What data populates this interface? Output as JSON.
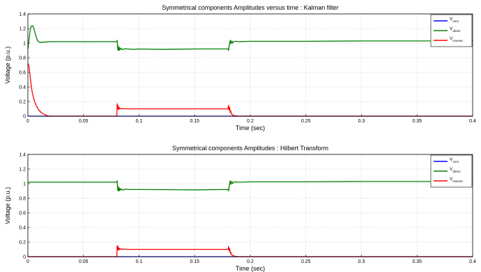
{
  "chart_data": [
    {
      "type": "line",
      "title": "Symmetrical components Amplitudes versus time : Kalman filter",
      "xlabel": "Time (sec)",
      "ylabel": "Voltage (p.u.)",
      "xlim": [
        0,
        0.4
      ],
      "ylim": [
        0,
        1.4
      ],
      "xticks": [
        "0",
        "0.05",
        "0.1",
        "0.15",
        "0.2",
        "0.25",
        "0.3",
        "0.35",
        "0.4"
      ],
      "yticks": [
        "0",
        "0.2",
        "0.4",
        "0.6",
        "0.8",
        "1",
        "1.2",
        "1.4"
      ],
      "grid": true,
      "legend_position": "top-right",
      "series": [
        {
          "name": "V",
          "sub": "zero",
          "color": "#0000ff",
          "x": [
            0,
            0.4
          ],
          "y": [
            0,
            0
          ]
        },
        {
          "name": "V",
          "sub": "direct",
          "color": "#008000",
          "x": [
            0,
            0.001,
            0.002,
            0.003,
            0.004,
            0.005,
            0.006,
            0.007,
            0.008,
            0.009,
            0.01,
            0.012,
            0.015,
            0.02,
            0.03,
            0.05,
            0.08,
            0.0803,
            0.0806,
            0.081,
            0.0813,
            0.0816,
            0.082,
            0.0825,
            0.083,
            0.084,
            0.0855,
            0.0875,
            0.09,
            0.095,
            0.1,
            0.12,
            0.15,
            0.17,
            0.18,
            0.1805,
            0.181,
            0.1815,
            0.182,
            0.1825,
            0.183,
            0.1835,
            0.184,
            0.185,
            0.187,
            0.19,
            0.2,
            0.25,
            0.3,
            0.35,
            0.4
          ],
          "y": [
            0.92,
            1.05,
            1.17,
            1.23,
            1.24,
            1.22,
            1.17,
            1.11,
            1.06,
            1.03,
            1.015,
            1.01,
            1.015,
            1.02,
            1.02,
            1.02,
            1.02,
            1.04,
            0.97,
            0.9,
            0.96,
            0.93,
            0.9,
            0.94,
            0.91,
            0.93,
            0.91,
            0.925,
            0.92,
            0.915,
            0.92,
            0.915,
            0.92,
            0.92,
            0.92,
            0.9,
            0.96,
            1.0,
            1.04,
            0.99,
            1.02,
            1.03,
            1.0,
            1.02,
            1.025,
            1.02,
            1.025,
            1.025,
            1.03,
            1.03,
            1.03
          ]
        },
        {
          "name": "V",
          "sub": "inverse",
          "color": "#ff0000",
          "x": [
            0,
            0.001,
            0.002,
            0.003,
            0.004,
            0.006,
            0.008,
            0.01,
            0.012,
            0.014,
            0.016,
            0.018,
            0.02,
            0.05,
            0.08,
            0.0803,
            0.0806,
            0.081,
            0.0813,
            0.0816,
            0.082,
            0.0825,
            0.083,
            0.084,
            0.086,
            0.09,
            0.1,
            0.15,
            0.18,
            0.1805,
            0.181,
            0.1815,
            0.182,
            0.1825,
            0.183,
            0.184,
            0.185,
            0.187,
            0.19,
            0.25,
            0.4
          ],
          "y": [
            0.72,
            0.68,
            0.55,
            0.42,
            0.32,
            0.2,
            0.13,
            0.08,
            0.05,
            0.03,
            0.015,
            0.005,
            0,
            0,
            0,
            0.17,
            0.1,
            0.15,
            0.12,
            0.09,
            0.12,
            0.1,
            0.11,
            0.1,
            0.105,
            0.1,
            0.1,
            0.1,
            0.1,
            0.15,
            0.08,
            0.12,
            0.05,
            0.07,
            0.03,
            0.02,
            0.01,
            0.005,
            0,
            0,
            0
          ]
        }
      ]
    },
    {
      "type": "line",
      "title": "Symmetrical components Amplitudes : Hilbert Transform",
      "xlabel": "Time (sec)",
      "ylabel": "Voltage (p.u.)",
      "xlim": [
        0,
        0.4
      ],
      "ylim": [
        0,
        1.4
      ],
      "xticks": [
        "0",
        "0.05",
        "0.1",
        "0.15",
        "0.2",
        "0.25",
        "0.3",
        "0.35",
        "0.4"
      ],
      "yticks": [
        "0",
        "0.2",
        "0.4",
        "0.6",
        "0.8",
        "1",
        "1.2",
        "1.4"
      ],
      "grid": true,
      "legend_position": "top-right",
      "series": [
        {
          "name": "V",
          "sub": "zero",
          "color": "#0000ff",
          "x": [
            0,
            0.4
          ],
          "y": [
            0,
            0
          ]
        },
        {
          "name": "V",
          "sub": "direct",
          "color": "#008000",
          "x": [
            0,
            0.05,
            0.08,
            0.0803,
            0.0806,
            0.081,
            0.0813,
            0.0816,
            0.082,
            0.0825,
            0.083,
            0.084,
            0.0855,
            0.0875,
            0.09,
            0.1,
            0.15,
            0.18,
            0.1805,
            0.181,
            0.1815,
            0.182,
            0.1825,
            0.183,
            0.1835,
            0.184,
            0.185,
            0.187,
            0.19,
            0.2,
            0.25,
            0.3,
            0.35,
            0.4
          ],
          "y": [
            1.02,
            1.02,
            1.02,
            1.04,
            0.97,
            0.9,
            0.96,
            0.93,
            0.9,
            0.94,
            0.91,
            0.93,
            0.91,
            0.925,
            0.92,
            0.92,
            0.915,
            0.92,
            0.9,
            0.96,
            1.0,
            1.04,
            0.99,
            1.02,
            1.03,
            1.0,
            1.02,
            1.025,
            1.02,
            1.025,
            1.025,
            1.03,
            1.03,
            1.03
          ]
        },
        {
          "name": "V",
          "sub": "inverse",
          "color": "#ff0000",
          "x": [
            0,
            0.08,
            0.0803,
            0.0806,
            0.081,
            0.0813,
            0.0816,
            0.082,
            0.0825,
            0.083,
            0.084,
            0.086,
            0.09,
            0.1,
            0.15,
            0.18,
            0.1805,
            0.181,
            0.1815,
            0.182,
            0.1825,
            0.183,
            0.184,
            0.185,
            0.187,
            0.19,
            0.4
          ],
          "y": [
            0,
            0,
            0.15,
            0.09,
            0.14,
            0.11,
            0.09,
            0.12,
            0.1,
            0.11,
            0.1,
            0.105,
            0.1,
            0.1,
            0.1,
            0.1,
            0.14,
            0.08,
            0.11,
            0.05,
            0.06,
            0.03,
            0.02,
            0.01,
            0.005,
            0,
            0
          ]
        }
      ]
    }
  ]
}
